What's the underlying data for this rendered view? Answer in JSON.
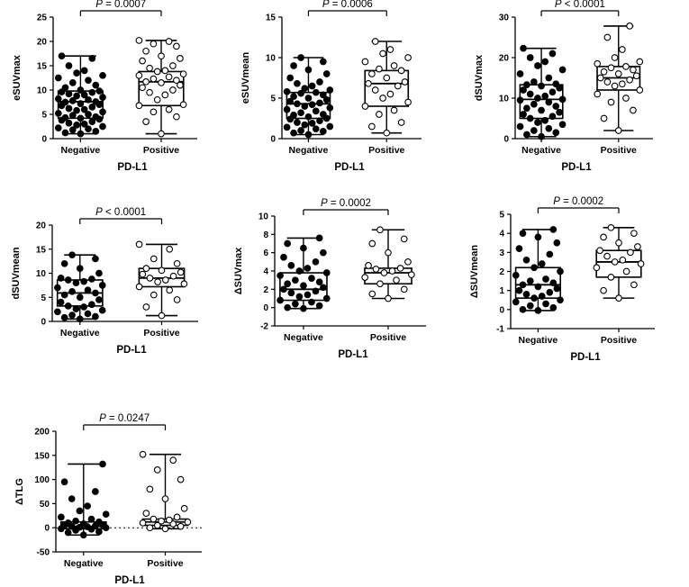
{
  "chart_data": [
    {
      "type": "box",
      "xlabel": "PD-L1",
      "ylabel": "eSUVmax",
      "ylim": [
        0,
        25
      ],
      "yticks": [
        0,
        5,
        10,
        15,
        20,
        25
      ],
      "categories": [
        "Negative",
        "Positive"
      ],
      "p_label": "P",
      "p_text": " = 0.0007",
      "series": [
        {
          "category": "Negative",
          "min": 1.0,
          "q1": 4.2,
          "median": 7.6,
          "q3": 9.8,
          "max": 17.0,
          "points": [
            1.0,
            1.2,
            1.5,
            1.8,
            2.0,
            2.2,
            2.5,
            2.8,
            3.0,
            3.2,
            3.5,
            3.8,
            4.0,
            4.2,
            4.3,
            4.5,
            4.8,
            5.0,
            5.2,
            5.5,
            5.8,
            6.0,
            6.2,
            6.5,
            6.8,
            7.0,
            7.2,
            7.5,
            7.6,
            7.8,
            8.0,
            8.2,
            8.5,
            8.8,
            9.0,
            9.2,
            9.5,
            9.6,
            9.8,
            10.0,
            10.5,
            11.0,
            11.5,
            12.0,
            12.5,
            13.0,
            13.5,
            14.0,
            15.0,
            16.5,
            17.0
          ]
        },
        {
          "category": "Positive",
          "min": 1.0,
          "q1": 6.8,
          "median": 11.7,
          "q3": 13.8,
          "max": 20.2,
          "points": [
            1.0,
            3.5,
            4.5,
            5.5,
            6.0,
            6.8,
            7.0,
            8.0,
            9.0,
            9.5,
            10.0,
            10.5,
            11.0,
            11.5,
            11.7,
            12.0,
            12.3,
            12.7,
            13.0,
            13.3,
            13.8,
            14.0,
            14.5,
            15.0,
            16.0,
            16.5,
            17.0,
            18.0,
            19.0,
            19.5,
            20.0,
            20.2
          ]
        }
      ]
    },
    {
      "type": "box",
      "xlabel": "PD-L1",
      "ylabel": "eSUVmean",
      "ylim": [
        0,
        15
      ],
      "yticks": [
        0,
        5,
        10,
        15
      ],
      "categories": [
        "Negative",
        "Positive"
      ],
      "p_label": "P",
      "p_text": " = 0.0006",
      "series": [
        {
          "category": "Negative",
          "min": 0.5,
          "q1": 2.5,
          "median": 4.3,
          "q3": 5.7,
          "max": 10.0,
          "points": [
            0.5,
            0.7,
            0.9,
            1.0,
            1.2,
            1.4,
            1.5,
            1.7,
            1.9,
            2.0,
            2.2,
            2.4,
            2.5,
            2.7,
            2.9,
            3.0,
            3.2,
            3.4,
            3.6,
            3.8,
            4.0,
            4.2,
            4.3,
            4.4,
            4.6,
            4.8,
            5.0,
            5.2,
            5.4,
            5.6,
            5.7,
            5.8,
            6.0,
            6.2,
            6.5,
            6.8,
            7.0,
            7.5,
            8.0,
            8.5,
            9.0,
            9.5,
            10.0
          ]
        },
        {
          "category": "Positive",
          "min": 0.7,
          "q1": 4.0,
          "median": 6.8,
          "q3": 8.4,
          "max": 12.0,
          "points": [
            0.7,
            1.5,
            2.0,
            3.0,
            3.5,
            4.0,
            4.5,
            5.0,
            5.5,
            6.0,
            6.5,
            6.8,
            7.0,
            7.5,
            8.0,
            8.4,
            8.6,
            9.0,
            9.5,
            10.0,
            10.5,
            11.0,
            12.0
          ]
        }
      ]
    },
    {
      "type": "box",
      "xlabel": "PD-L1",
      "ylabel": "dSUVmax",
      "ylim": [
        0,
        30
      ],
      "yticks": [
        0,
        10,
        20,
        30
      ],
      "categories": [
        "Negative",
        "Positive"
      ],
      "p_label": "P",
      "p_text": " < 0.0001",
      "series": [
        {
          "category": "Negative",
          "min": 0.5,
          "q1": 5.0,
          "median": 9.7,
          "q3": 13.3,
          "max": 22.3,
          "points": [
            0.5,
            1.0,
            1.5,
            2.0,
            2.5,
            3.0,
            3.5,
            4.0,
            4.5,
            5.0,
            5.5,
            6.0,
            6.5,
            7.0,
            7.5,
            8.0,
            8.5,
            9.0,
            9.5,
            9.7,
            10.0,
            10.5,
            11.0,
            11.5,
            12.0,
            12.5,
            13.0,
            13.3,
            13.5,
            14.0,
            15.0,
            16.0,
            17.0,
            18.0,
            19.0,
            20.0,
            21.0,
            22.3
          ]
        },
        {
          "category": "Positive",
          "min": 2.0,
          "q1": 12.0,
          "median": 15.0,
          "q3": 17.8,
          "max": 27.8,
          "points": [
            2.0,
            5.0,
            7.0,
            9.0,
            10.0,
            11.0,
            12.0,
            13.0,
            13.5,
            14.0,
            14.5,
            15.0,
            15.5,
            16.0,
            16.5,
            17.0,
            17.5,
            17.8,
            18.5,
            19.0,
            20.0,
            22.0,
            25.0,
            27.8
          ]
        }
      ]
    },
    {
      "type": "box",
      "xlabel": "PD-L1",
      "ylabel": "dSUVmean",
      "ylim": [
        0,
        20
      ],
      "yticks": [
        0,
        5,
        10,
        15,
        20
      ],
      "categories": [
        "Negative",
        "Positive"
      ],
      "p_label": "P",
      "p_text": " < 0.0001",
      "series": [
        {
          "category": "Negative",
          "min": 0.5,
          "q1": 3.2,
          "median": 5.9,
          "q3": 8.6,
          "max": 13.8,
          "points": [
            0.5,
            0.8,
            1.0,
            1.3,
            1.6,
            2.0,
            2.3,
            2.6,
            3.0,
            3.2,
            3.5,
            4.0,
            4.5,
            5.0,
            5.5,
            5.9,
            6.2,
            6.5,
            7.0,
            7.5,
            8.0,
            8.3,
            8.6,
            8.8,
            9.0,
            10.0,
            11.0,
            12.0,
            13.0,
            13.8
          ]
        },
        {
          "category": "Positive",
          "min": 1.2,
          "q1": 7.2,
          "median": 9.0,
          "q3": 11.0,
          "max": 16.0,
          "points": [
            1.2,
            3.0,
            4.5,
            5.5,
            6.5,
            7.2,
            7.8,
            8.2,
            8.6,
            9.0,
            9.4,
            9.8,
            10.2,
            10.6,
            11.0,
            12.0,
            13.0,
            15.0,
            16.0
          ]
        }
      ]
    },
    {
      "type": "box",
      "xlabel": "PD-L1",
      "ylabel": "ΔSUVmax",
      "ylim": [
        -2,
        10
      ],
      "yticks": [
        -2,
        0,
        2,
        4,
        6,
        8,
        10
      ],
      "categories": [
        "Negative",
        "Positive"
      ],
      "p_label": "P",
      "p_text": " = 0.0002",
      "series": [
        {
          "category": "Negative",
          "min": -0.1,
          "q1": 0.8,
          "median": 2.0,
          "q3": 3.8,
          "max": 7.6,
          "points": [
            -0.1,
            0.0,
            0.2,
            0.4,
            0.6,
            0.8,
            1.0,
            1.2,
            1.4,
            1.6,
            1.8,
            2.0,
            2.2,
            2.4,
            2.6,
            2.8,
            3.0,
            3.2,
            3.5,
            3.8,
            4.0,
            4.3,
            4.6,
            5.0,
            5.5,
            6.0,
            6.5,
            7.0,
            7.6
          ]
        },
        {
          "category": "Positive",
          "min": 1.0,
          "q1": 2.6,
          "median": 3.8,
          "q3": 4.3,
          "max": 8.5,
          "points": [
            1.0,
            1.5,
            2.0,
            2.6,
            3.0,
            3.3,
            3.6,
            3.8,
            4.0,
            4.2,
            4.3,
            4.6,
            5.0,
            6.0,
            7.0,
            7.5,
            8.5
          ]
        }
      ]
    },
    {
      "type": "box",
      "xlabel": "PD-L1",
      "ylabel": "ΔSUVmean",
      "ylim": [
        -1,
        5
      ],
      "yticks": [
        -1,
        0,
        1,
        2,
        3,
        4,
        5
      ],
      "categories": [
        "Negative",
        "Positive"
      ],
      "p_label": "P",
      "p_text": " = 0.0002",
      "series": [
        {
          "category": "Negative",
          "min": -0.05,
          "q1": 0.6,
          "median": 1.3,
          "q3": 2.2,
          "max": 4.2,
          "points": [
            -0.05,
            0.0,
            0.1,
            0.2,
            0.3,
            0.4,
            0.5,
            0.6,
            0.7,
            0.8,
            0.9,
            1.0,
            1.1,
            1.2,
            1.3,
            1.4,
            1.5,
            1.6,
            1.8,
            2.0,
            2.2,
            2.4,
            2.6,
            2.9,
            3.2,
            3.5,
            3.8,
            4.0,
            4.2
          ]
        },
        {
          "category": "Positive",
          "min": 0.6,
          "q1": 1.7,
          "median": 2.5,
          "q3": 3.1,
          "max": 4.3,
          "points": [
            0.6,
            1.0,
            1.3,
            1.7,
            2.0,
            2.2,
            2.4,
            2.5,
            2.6,
            2.8,
            3.0,
            3.1,
            3.3,
            3.5,
            3.8,
            4.0,
            4.3
          ]
        }
      ]
    },
    {
      "type": "box",
      "xlabel": "PD-L1",
      "ylabel": "ΔTLG",
      "ylim": [
        -50,
        200
      ],
      "yticks": [
        -50,
        0,
        50,
        100,
        150,
        200
      ],
      "reference_line": 0,
      "categories": [
        "Negative",
        "Positive"
      ],
      "p_label": "P",
      "p_text": " = 0.0247",
      "series": [
        {
          "category": "Negative",
          "min": -15,
          "q1": -2,
          "median": 3,
          "q3": 12,
          "max": 132,
          "points": [
            -15,
            -10,
            -8,
            -5,
            -3,
            -2,
            0,
            1,
            2,
            3,
            4,
            5,
            6,
            8,
            10,
            12,
            14,
            18,
            22,
            28,
            35,
            45,
            60,
            75,
            95,
            132
          ]
        },
        {
          "category": "Positive",
          "min": -2,
          "q1": 5,
          "median": 12,
          "q3": 18,
          "max": 152,
          "points": [
            -2,
            0,
            3,
            5,
            8,
            10,
            12,
            14,
            16,
            18,
            22,
            30,
            40,
            60,
            80,
            100,
            120,
            140,
            152
          ]
        }
      ]
    }
  ]
}
